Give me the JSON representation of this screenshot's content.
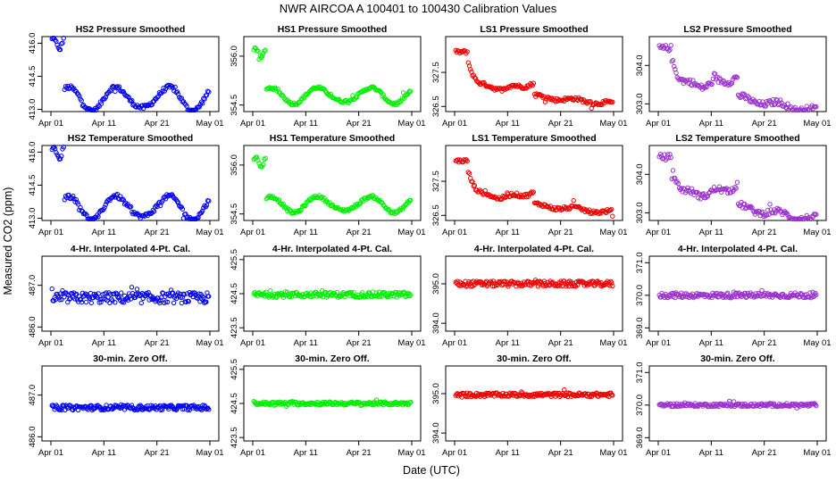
{
  "page_title": "NWR   AIRCOA A   100401 to 100430   Calibration Values",
  "xlabel": "Date (UTC)",
  "ylabel": "Measured CO2 (ppm)",
  "x_ticks": [
    "Apr 01",
    "Apr 11",
    "Apr 21",
    "May 01"
  ],
  "chart_data": [
    {
      "type": "scatter",
      "title": "HS2 Pressure Smoothed",
      "color": "#0000ee",
      "ylim": [
        412.9,
        416.3
      ],
      "yticks": [
        413.0,
        414.5,
        416.0
      ],
      "pattern": "seasonal",
      "base": 413.5,
      "amp": 0.55,
      "spike": 2.5,
      "points": 150
    },
    {
      "type": "scatter",
      "title": "HS1 Pressure Smoothed",
      "color": "#00ee00",
      "ylim": [
        354.3,
        356.6
      ],
      "yticks": [
        354.5,
        356.0
      ],
      "pattern": "seasonal",
      "base": 354.8,
      "amp": 0.25,
      "spike": 1.3,
      "points": 150
    },
    {
      "type": "scatter",
      "title": "LS1 Pressure Smoothed",
      "color": "#ee0000",
      "ylim": [
        326.35,
        328.55
      ],
      "yticks": [
        326.5,
        327.5
      ],
      "pattern": "step",
      "base": 326.8,
      "amp": 0.3,
      "spike": 1.3,
      "points": 150
    },
    {
      "type": "scatter",
      "title": "LS2 Pressure Smoothed",
      "color": "#9a32cd",
      "ylim": [
        302.8,
        304.75
      ],
      "yticks": [
        303.0,
        304.0
      ],
      "pattern": "step",
      "base": 303.15,
      "amp": 0.45,
      "spike": 1.3,
      "points": 150
    },
    {
      "type": "scatter",
      "title": "HS2 Temperature Smoothed",
      "color": "#0000ee",
      "ylim": [
        412.9,
        416.3
      ],
      "yticks": [
        413.0,
        414.5,
        416.0
      ],
      "pattern": "seasonal",
      "base": 413.5,
      "amp": 0.55,
      "spike": 2.5,
      "points": 150
    },
    {
      "type": "scatter",
      "title": "HS1 Temperature Smoothed",
      "color": "#00ee00",
      "ylim": [
        354.3,
        356.6
      ],
      "yticks": [
        354.5,
        356.0
      ],
      "pattern": "seasonal",
      "base": 354.8,
      "amp": 0.25,
      "spike": 1.3,
      "points": 150
    },
    {
      "type": "scatter",
      "title": "LS1 Temperature Smoothed",
      "color": "#ee0000",
      "ylim": [
        326.35,
        328.55
      ],
      "yticks": [
        326.5,
        327.5
      ],
      "pattern": "step",
      "base": 326.8,
      "amp": 0.3,
      "spike": 1.3,
      "points": 150
    },
    {
      "type": "scatter",
      "title": "LS2 Temperature Smoothed",
      "color": "#9a32cd",
      "ylim": [
        302.8,
        304.75
      ],
      "yticks": [
        303.0,
        304.0
      ],
      "pattern": "step",
      "base": 303.15,
      "amp": 0.45,
      "spike": 1.3,
      "points": 150
    },
    {
      "type": "scatter",
      "title": "4-Hr. Interpolated 4-Pt. Cal.",
      "color": "#0000ee",
      "ylim": [
        485.9,
        487.7
      ],
      "yticks": [
        486.0,
        487.0
      ],
      "pattern": "flat",
      "base": 486.7,
      "noise": 0.13,
      "points": 180
    },
    {
      "type": "scatter",
      "title": "4-Hr. Interpolated 4-Pt. Cal.",
      "color": "#00ee00",
      "ylim": [
        423.4,
        425.6
      ],
      "yticks": [
        423.5,
        424.5,
        425.5
      ],
      "pattern": "flat",
      "base": 424.47,
      "noise": 0.08,
      "points": 180
    },
    {
      "type": "scatter",
      "title": "4-Hr. Interpolated 4-Pt. Cal.",
      "color": "#ee0000",
      "ylim": [
        393.8,
        395.7
      ],
      "yticks": [
        394.0,
        395.0
      ],
      "pattern": "flat",
      "base": 395.0,
      "noise": 0.07,
      "points": 180
    },
    {
      "type": "scatter",
      "title": "4-Hr. Interpolated 4-Pt. Cal.",
      "color": "#9a32cd",
      "ylim": [
        368.9,
        371.2
      ],
      "yticks": [
        369.0,
        370.0,
        371.0
      ],
      "pattern": "flat",
      "base": 370.0,
      "noise": 0.08,
      "points": 180
    },
    {
      "type": "scatter",
      "title": "30-min. Zero Off.",
      "color": "#0000ee",
      "ylim": [
        485.9,
        487.7
      ],
      "yticks": [
        486.0,
        487.0
      ],
      "pattern": "flat",
      "base": 486.7,
      "noise": 0.06,
      "points": 180
    },
    {
      "type": "scatter",
      "title": "30-min. Zero Off.",
      "color": "#00ee00",
      "ylim": [
        423.4,
        425.6
      ],
      "yticks": [
        423.5,
        424.5,
        425.5
      ],
      "pattern": "flat",
      "base": 424.5,
      "noise": 0.05,
      "points": 180
    },
    {
      "type": "scatter",
      "title": "30-min. Zero Off.",
      "color": "#ee0000",
      "ylim": [
        393.8,
        395.7
      ],
      "yticks": [
        394.0,
        395.0
      ],
      "pattern": "flat",
      "base": 394.97,
      "noise": 0.05,
      "points": 180
    },
    {
      "type": "scatter",
      "title": "30-min. Zero Off.",
      "color": "#9a32cd",
      "ylim": [
        368.9,
        371.2
      ],
      "yticks": [
        369.0,
        370.0,
        371.0
      ],
      "pattern": "flat",
      "base": 370.0,
      "noise": 0.05,
      "points": 180
    }
  ]
}
